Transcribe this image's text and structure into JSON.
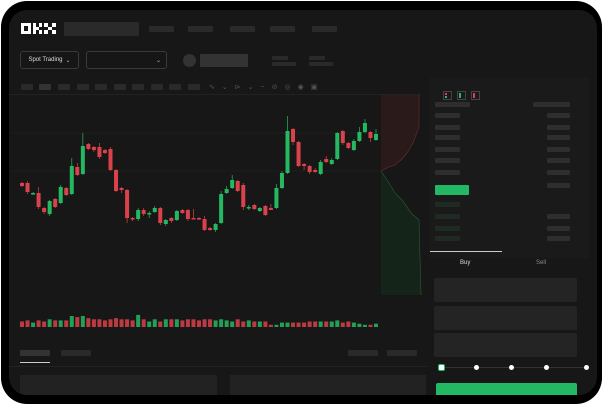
{
  "brand": {
    "logo": "OKX"
  },
  "toolbar": {
    "market_type": "Spot Trading"
  },
  "trade": {
    "buy_label": "Buy",
    "sell_label": "Sell",
    "slider_steps": 5,
    "slider_value_percent": 0
  },
  "colors": {
    "up": "#25b860",
    "down": "#d9424a",
    "background": "#171717",
    "accent": "#22b864"
  },
  "icons": [
    "chevron-down-icon",
    "order-book-both-icon",
    "order-book-bids-icon",
    "order-book-asks-icon",
    "indicator-icon",
    "draw-line-icon",
    "ruler-icon",
    "camera-icon",
    "settings-icon",
    "fullscreen-icon"
  ],
  "chart_data": {
    "type": "candlestick",
    "title": "",
    "fields": [
      "open",
      "high",
      "low",
      "close",
      "volume"
    ],
    "candles": [
      [
        58,
        59,
        54,
        55,
        5
      ],
      [
        58,
        60,
        47,
        49,
        6
      ],
      [
        47,
        49,
        46,
        48,
        4
      ],
      [
        48,
        54,
        32,
        34,
        6
      ],
      [
        33,
        34,
        27,
        29,
        5
      ],
      [
        27,
        41,
        25,
        40,
        7
      ],
      [
        42,
        43,
        33,
        34,
        6
      ],
      [
        38,
        56,
        37,
        54,
        6
      ],
      [
        53,
        54,
        45,
        46,
        6
      ],
      [
        47,
        83,
        46,
        75,
        10
      ],
      [
        74,
        78,
        65,
        66,
        9
      ],
      [
        67,
        108,
        66,
        95,
        10
      ],
      [
        97,
        98,
        91,
        92,
        8
      ],
      [
        94,
        95,
        89,
        91,
        7
      ],
      [
        94,
        98,
        82,
        84,
        7
      ],
      [
        91,
        92,
        87,
        88,
        6
      ],
      [
        92,
        94,
        70,
        71,
        7
      ],
      [
        71,
        72,
        49,
        50,
        8
      ],
      [
        53,
        54,
        48,
        51,
        7
      ],
      [
        51,
        52,
        18,
        23,
        7
      ],
      [
        23,
        24,
        20,
        22,
        6
      ],
      [
        22,
        33,
        20,
        31,
        11
      ],
      [
        31,
        33,
        25,
        27,
        7
      ],
      [
        27,
        30,
        23,
        28,
        5
      ],
      [
        29,
        35,
        28,
        33,
        7
      ],
      [
        33,
        34,
        16,
        18,
        5
      ],
      [
        17,
        22,
        15,
        21,
        7
      ],
      [
        23,
        24,
        18,
        20,
        7
      ],
      [
        21,
        31,
        20,
        30,
        7
      ],
      [
        31,
        32,
        27,
        28,
        6
      ],
      [
        31,
        32,
        20,
        22,
        7
      ],
      [
        23,
        32,
        22,
        22,
        7
      ],
      [
        23,
        24,
        21,
        22,
        6
      ],
      [
        22,
        25,
        10,
        11,
        7
      ],
      [
        13,
        14,
        10,
        11,
        7
      ],
      [
        11,
        18,
        9,
        17,
        6
      ],
      [
        18,
        50,
        17,
        47,
        7
      ],
      [
        48,
        55,
        47,
        52,
        6
      ],
      [
        53,
        66,
        52,
        61,
        5
      ],
      [
        60,
        61,
        49,
        50,
        7
      ],
      [
        56,
        58,
        31,
        34,
        5
      ],
      [
        33,
        36,
        31,
        34,
        6
      ],
      [
        36,
        37,
        31,
        32,
        5
      ],
      [
        30,
        34,
        29,
        33,
        5
      ],
      [
        35,
        36,
        25,
        26,
        5
      ],
      [
        33,
        37,
        31,
        31,
        2
      ],
      [
        33,
        57,
        32,
        53,
        2
      ],
      [
        53,
        70,
        52,
        68,
        4
      ],
      [
        68,
        125,
        67,
        110,
        4
      ],
      [
        112,
        113,
        96,
        99,
        4
      ],
      [
        99,
        100,
        74,
        75,
        4
      ],
      [
        77,
        78,
        71,
        75,
        4
      ],
      [
        75,
        76,
        67,
        69,
        5
      ],
      [
        71,
        73,
        68,
        69,
        5
      ],
      [
        67,
        81,
        66,
        79,
        5
      ],
      [
        82,
        85,
        78,
        79,
        5
      ],
      [
        77,
        83,
        76,
        81,
        5
      ],
      [
        82,
        109,
        81,
        108,
        6
      ],
      [
        110,
        111,
        96,
        98,
        4
      ],
      [
        98,
        99,
        92,
        93,
        5
      ],
      [
        91,
        102,
        90,
        100,
        4
      ],
      [
        100,
        114,
        99,
        109,
        3
      ],
      [
        109,
        122,
        108,
        118,
        2
      ],
      [
        109,
        110,
        99,
        103,
        2
      ],
      [
        101,
        112,
        100,
        107,
        3
      ]
    ]
  }
}
